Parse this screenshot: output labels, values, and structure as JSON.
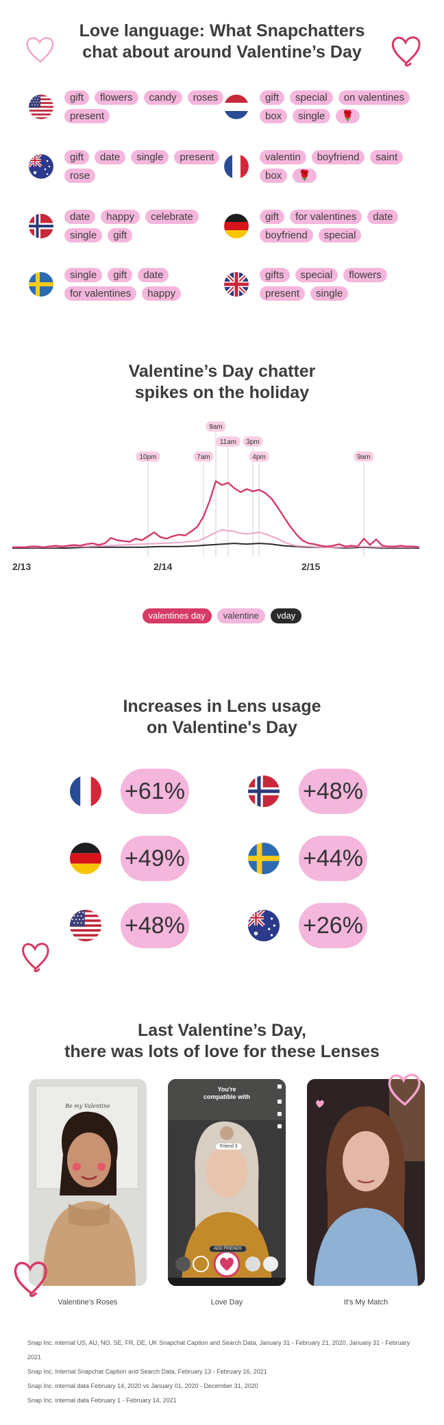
{
  "keywords_section": {
    "title_line1": "Love language: What Snapchatters",
    "title_line2": "chat about around Valentine’s Day",
    "countries": [
      {
        "flag": "us-flag-icon",
        "chips": [
          "gift",
          "flowers",
          "candy",
          "roses",
          "present"
        ]
      },
      {
        "flag": "nl-flag-icon",
        "chips": [
          "gift",
          "special",
          "on valentines",
          "box",
          "single",
          "🌹"
        ]
      },
      {
        "flag": "au-flag-icon",
        "chips": [
          "gift",
          "date",
          "single",
          "present",
          "rose"
        ]
      },
      {
        "flag": "fr-flag-icon",
        "chips": [
          "valentin",
          "boyfriend",
          "saint",
          "box",
          "🌹"
        ]
      },
      {
        "flag": "no-flag-icon",
        "chips": [
          "date",
          "happy",
          "celebrate",
          "single",
          "gift"
        ]
      },
      {
        "flag": "de-flag-icon",
        "chips": [
          "gift",
          "for valentines",
          "date",
          "boyfriend",
          "special"
        ]
      },
      {
        "flag": "se-flag-icon",
        "chips": [
          "single",
          "gift",
          "date",
          "for valentines",
          "happy"
        ]
      },
      {
        "flag": "uk-flag-icon",
        "chips": [
          "gifts",
          "special",
          "flowers",
          "present",
          "single"
        ]
      }
    ]
  },
  "chart_section": {
    "title_line1": "Valentine’s Day chatter",
    "title_line2": "spikes on the holiday"
  },
  "chart_data": {
    "type": "line",
    "title": "Valentine’s Day chatter spikes on the holiday",
    "x_tick_labels": [
      "2/13",
      "2/14",
      "2/15"
    ],
    "x_ticks_at": [
      0,
      24,
      48
    ],
    "x_range": [
      0,
      66
    ],
    "y_range": [
      0,
      100
    ],
    "grid": false,
    "legend_position": "bottom-center",
    "annotations": [
      {
        "label": "10pm",
        "x": 22
      },
      {
        "label": "7am",
        "x": 31
      },
      {
        "label": "9am",
        "x": 33
      },
      {
        "label": "11am",
        "x": 35
      },
      {
        "label": "3pm",
        "x": 39
      },
      {
        "label": "4pm",
        "x": 40
      },
      {
        "label": "9am",
        "x": 57
      }
    ],
    "series": [
      {
        "name": "valentines day",
        "color": "#d63a66",
        "x": [
          0,
          1,
          2,
          3,
          4,
          5,
          6,
          7,
          8,
          9,
          10,
          11,
          12,
          13,
          14,
          15,
          16,
          17,
          18,
          19,
          20,
          21,
          22,
          23,
          24,
          25,
          26,
          27,
          28,
          29,
          30,
          31,
          32,
          33,
          34,
          35,
          36,
          37,
          38,
          39,
          40,
          41,
          42,
          43,
          44,
          45,
          46,
          47,
          48,
          49,
          50,
          51,
          52,
          53,
          54,
          55,
          56,
          57,
          58,
          59,
          60,
          61,
          62,
          63,
          64,
          65,
          66
        ],
        "values": [
          1,
          1,
          1,
          2,
          2,
          1,
          2,
          3,
          2,
          3,
          4,
          3,
          5,
          6,
          4,
          6,
          13,
          10,
          9,
          8,
          12,
          10,
          15,
          20,
          14,
          12,
          15,
          17,
          16,
          21,
          27,
          40,
          60,
          85,
          80,
          83,
          76,
          71,
          75,
          72,
          74,
          70,
          63,
          52,
          40,
          28,
          18,
          10,
          6,
          5,
          3,
          2,
          3,
          5,
          2,
          3,
          2,
          12,
          4,
          11,
          3,
          2,
          2,
          3,
          2,
          2,
          1
        ]
      },
      {
        "name": "valentine",
        "color": "#eda4c8",
        "x": [
          0,
          3,
          6,
          9,
          12,
          15,
          18,
          21,
          24,
          27,
          30,
          31,
          32,
          33,
          34,
          35,
          36,
          37,
          38,
          39,
          40,
          41,
          42,
          43,
          44,
          45,
          46,
          48,
          51,
          54,
          57,
          60,
          63,
          66
        ],
        "values": [
          1,
          1,
          1,
          2,
          2,
          3,
          4,
          5,
          6,
          7,
          9,
          12,
          16,
          20,
          23,
          22,
          21,
          19,
          18,
          19,
          20,
          18,
          15,
          12,
          8,
          5,
          3,
          2,
          1,
          1,
          2,
          1,
          1,
          1
        ]
      },
      {
        "name": "vday",
        "color": "#2a2a2a",
        "x": [
          0,
          3,
          6,
          9,
          12,
          15,
          18,
          21,
          24,
          27,
          30,
          32,
          34,
          36,
          38,
          40,
          42,
          44,
          46,
          48,
          51,
          54,
          57,
          60,
          63,
          66
        ],
        "values": [
          0,
          0,
          0,
          0,
          1,
          1,
          1,
          1,
          2,
          2,
          3,
          4,
          5,
          6,
          5,
          6,
          5,
          3,
          2,
          1,
          1,
          0,
          1,
          0,
          0,
          0
        ]
      }
    ]
  },
  "legend": [
    {
      "label": "valentines day",
      "bg": "#d63a66",
      "fg": "#ffffff"
    },
    {
      "label": "valentine",
      "bg": "#f4b6dc",
      "fg": "#3c3c3c"
    },
    {
      "label": "vday",
      "bg": "#2a2a2a",
      "fg": "#ffffff"
    }
  ],
  "lens_section": {
    "title_line1": "Increases in Lens usage",
    "title_line2": "on Valentine's Day",
    "items": [
      {
        "flag": "fr-flag-icon",
        "value": "+61%"
      },
      {
        "flag": "no-flag-icon",
        "value": "+48%"
      },
      {
        "flag": "de-flag-icon",
        "value": "+49%"
      },
      {
        "flag": "se-flag-icon",
        "value": "+44%"
      },
      {
        "flag": "us-flag-icon",
        "value": "+48%"
      },
      {
        "flag": "au-flag-icon",
        "value": "+26%"
      }
    ]
  },
  "lenses_section": {
    "title_line1": "Last Valentine’s Day,",
    "title_line2": "there was lots of love for these Lenses",
    "photos": [
      {
        "caption": "Valentine's Roses"
      },
      {
        "caption": "Love Day",
        "overlay_top": "You're",
        "overlay_mid": "compatible with",
        "chip": "Friend 3",
        "button": "ADD FRIENDS"
      },
      {
        "caption": "It's My Match"
      }
    ]
  },
  "footnotes": [
    "Snap Inc. internal US, AU, NO, SE, FR, DE, UK Snapchat Caption and Search Data, January 31 - February 21, 2020, January 31 - February 2021",
    "Snap Inc. Internal Snapchat Caption and Search Data, February 13 - February 16, 2021",
    "Snap Inc. internal data February 14, 2020 vs January 01, 2020 - December 31, 2020",
    "Snap Inc. internal data February 1 - February 14, 2021"
  ],
  "colors": {
    "pink_chip": "#f4b6dc",
    "accent": "#d63a66"
  }
}
